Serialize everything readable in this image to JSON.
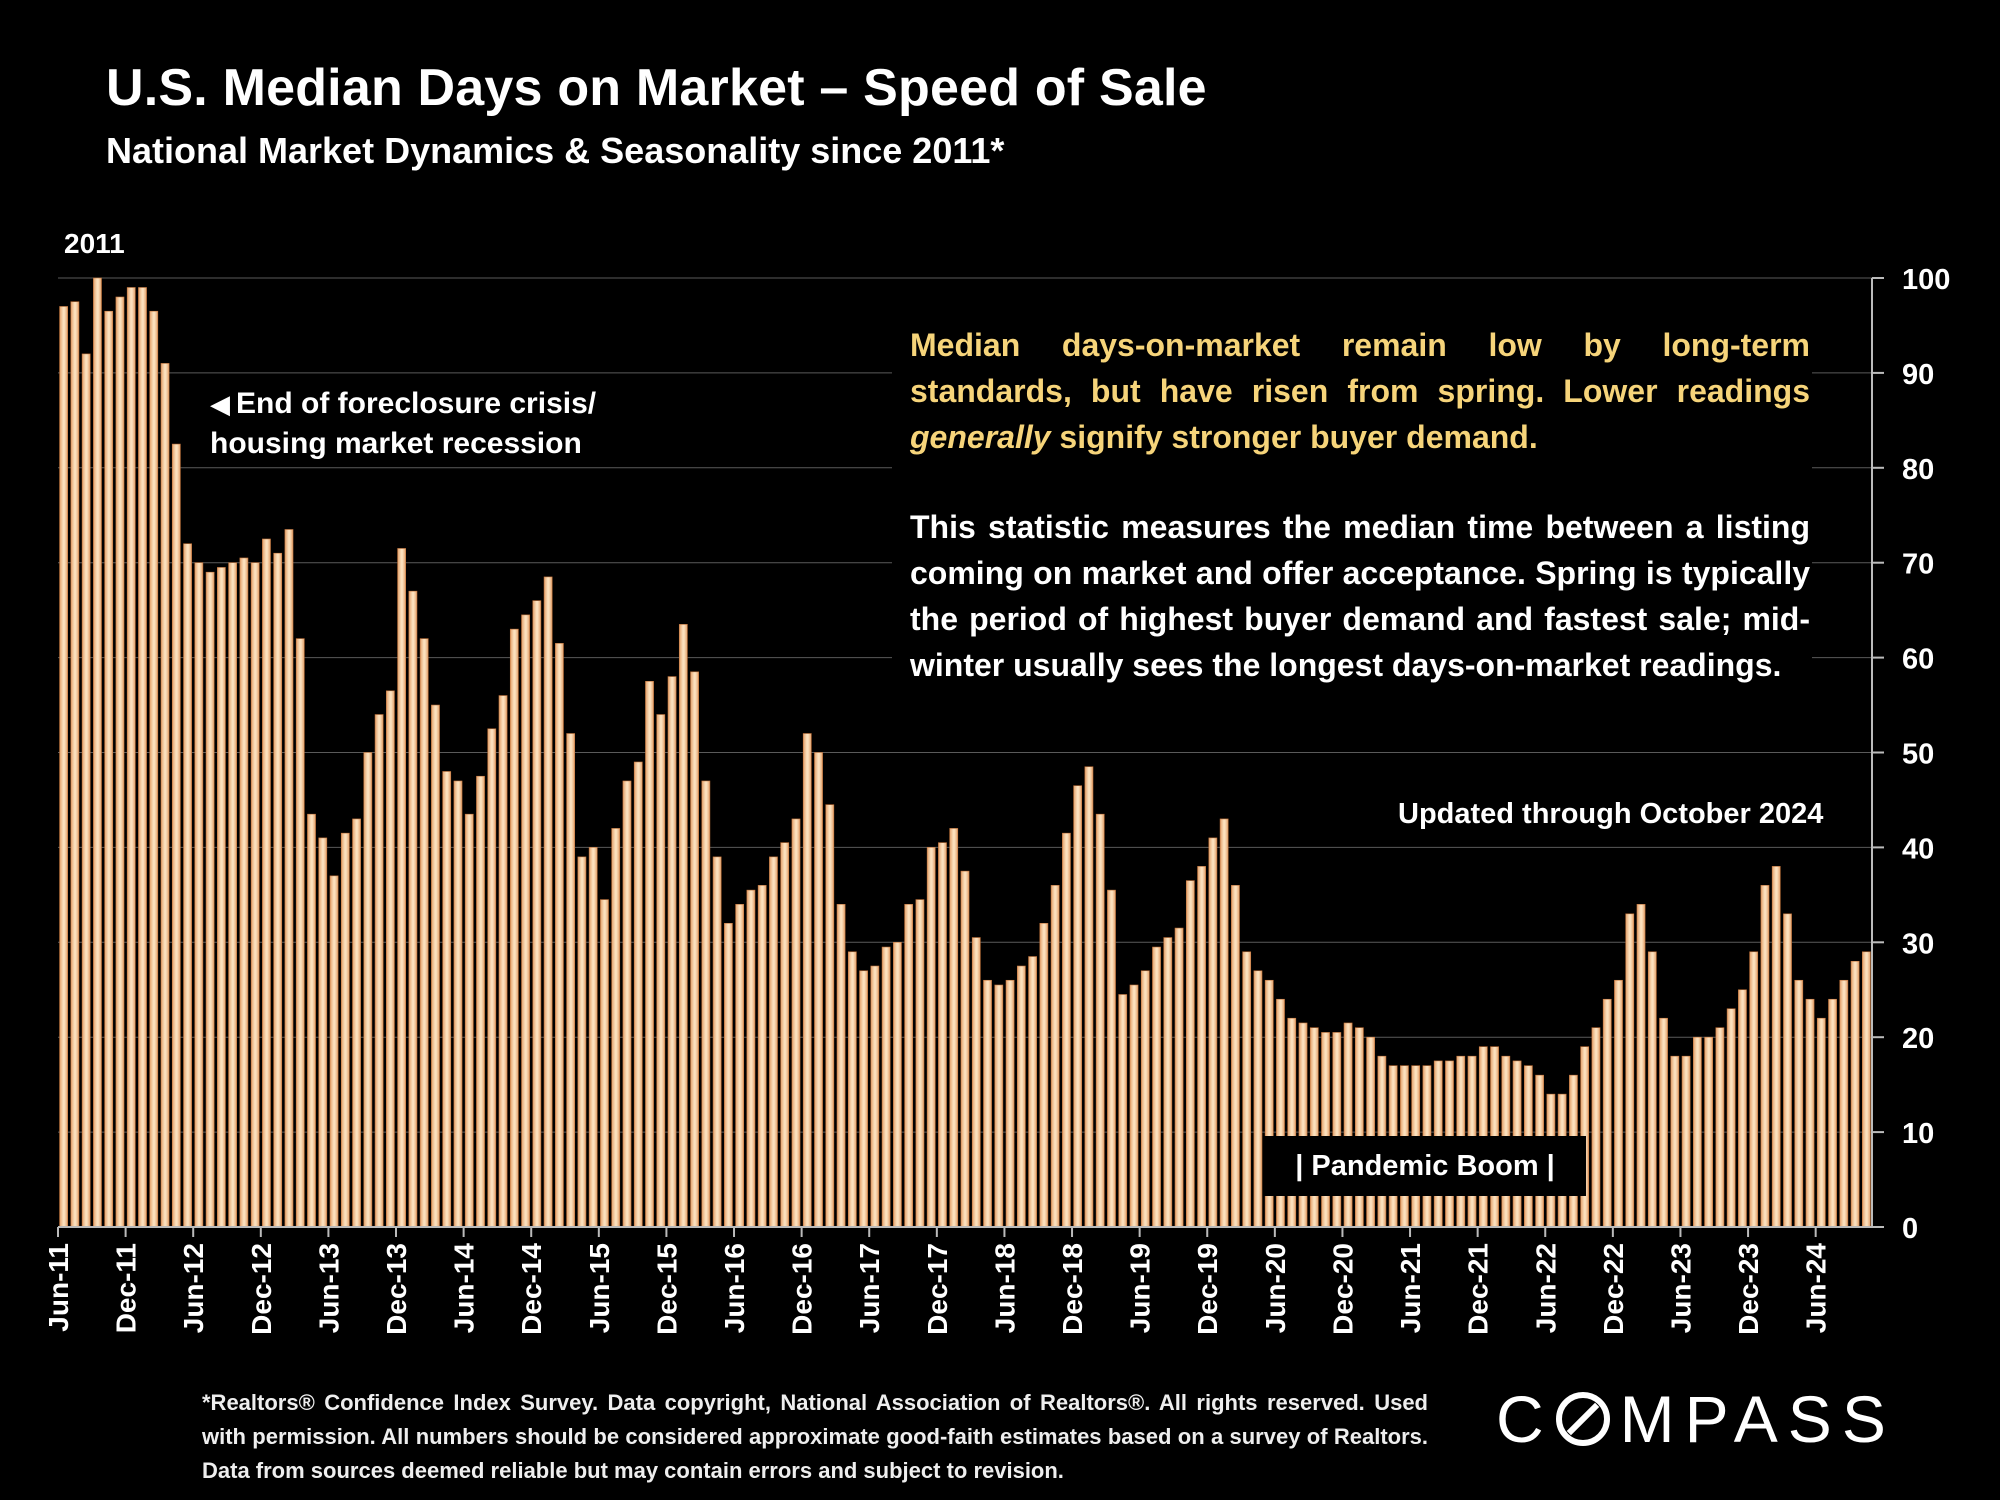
{
  "header": {
    "title": "U.S. Median Days on Market – Speed of Sale",
    "subtitle": "National Market Dynamics & Seasonality since 2011*"
  },
  "year_label": "2011",
  "annotations": {
    "foreclosure_arrow": "◀",
    "foreclosure_line1": "End of foreclosure crisis/",
    "foreclosure_line2": "housing market recession",
    "updated": "Updated through October 2024",
    "pandemic": "| Pandemic Boom |"
  },
  "note": {
    "main_before": "Median days-on-market remain low by long-term standards, but have risen from spring. Lower readings ",
    "main_italic": "generally",
    "main_after": " signify stronger buyer demand.",
    "detail": "This statistic measures the median time between a listing coming on market and offer acceptance. Spring is typically the period of highest buyer demand and fastest sale; mid-winter usually sees the longest days-on-market readings."
  },
  "footnote": "*Realtors® Confidence Index Survey. Data copyright, National Association of Realtors®. All rights reserved. Used with permission. All numbers should be considered approximate good-faith estimates based on a survey of Realtors. Data from sources deemed reliable but may contain errors and subject to revision.",
  "logo": {
    "before": "C",
    "after": "MPASS"
  },
  "colors": {
    "bar": "#e3a06a",
    "bar_highlight": "#fbe0bd",
    "accent_text": "#f6d47a",
    "background": "#000000"
  },
  "chart_data": {
    "type": "bar",
    "title": "U.S. Median Days on Market – Speed of Sale",
    "ylim": [
      0,
      100
    ],
    "yticks": [
      0,
      10,
      20,
      30,
      40,
      50,
      60,
      70,
      80,
      90,
      100
    ],
    "axis_side": "right",
    "grid": true,
    "start_month": "Jun-11",
    "end_month": "Oct-24",
    "xtick_labels": [
      "Jun-11",
      "Dec-11",
      "Jun-12",
      "Dec-12",
      "Jun-13",
      "Dec-13",
      "Jun-14",
      "Dec-14",
      "Jun-15",
      "Dec-15",
      "Jun-16",
      "Dec-16",
      "Jun-17",
      "Dec-17",
      "Jun-18",
      "Dec-18",
      "Jun-19",
      "Dec-19",
      "Jun-20",
      "Dec-20",
      "Jun-21",
      "Dec-21",
      "Jun-22",
      "Dec-22",
      "Jun-23",
      "Dec-23",
      "Jun-24"
    ],
    "values": [
      97,
      97.5,
      92,
      100,
      96.5,
      98,
      99,
      99,
      96.5,
      91,
      82.5,
      72,
      70,
      69,
      69.5,
      70,
      70.5,
      70,
      72.5,
      71,
      73.5,
      62,
      43.5,
      41,
      37,
      41.5,
      43,
      50,
      54,
      56.5,
      71.5,
      67,
      62,
      55,
      48,
      47,
      43.5,
      47.5,
      52.5,
      56,
      63,
      64.5,
      66,
      68.5,
      61.5,
      52,
      39,
      40,
      34.5,
      42,
      47,
      49,
      57.5,
      54,
      58,
      63.5,
      58.5,
      47,
      39,
      32,
      34,
      35.5,
      36,
      39,
      40.5,
      43,
      52,
      50,
      44.5,
      34,
      29,
      27,
      27.5,
      29.5,
      30,
      34,
      34.5,
      40,
      40.5,
      42,
      37.5,
      30.5,
      26,
      25.5,
      26,
      27.5,
      28.5,
      32,
      36,
      41.5,
      46.5,
      48.5,
      43.5,
      35.5,
      24.5,
      25.5,
      27,
      29.5,
      30.5,
      31.5,
      36.5,
      38,
      41,
      43,
      36,
      29,
      27,
      26,
      24,
      22,
      21.5,
      21,
      20.5,
      20.5,
      21.5,
      21,
      20,
      18,
      17,
      17,
      17,
      17,
      17.5,
      17.5,
      18,
      18,
      19,
      19,
      18,
      17.5,
      17,
      16,
      14,
      14,
      16,
      19,
      21,
      24,
      26,
      33,
      34,
      29,
      22,
      18,
      18,
      20,
      20,
      21,
      23,
      25,
      29,
      36,
      38,
      33,
      26,
      24,
      22,
      24,
      26,
      28,
      29
    ]
  }
}
